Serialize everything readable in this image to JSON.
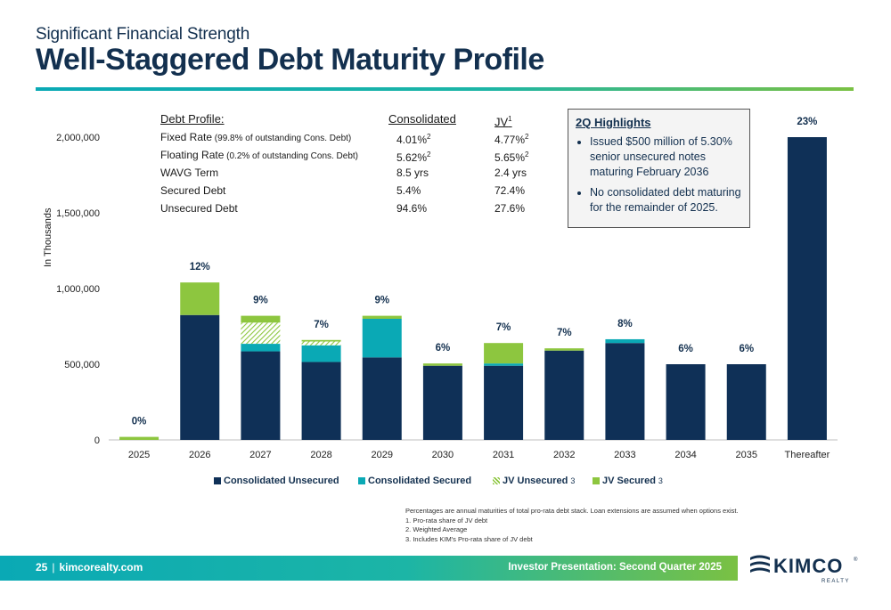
{
  "header": {
    "subtitle": "Significant Financial Strength",
    "title": "Well-Staggered Debt Maturity Profile"
  },
  "debt_profile": {
    "headers": {
      "label": "Debt Profile:",
      "consolidated": "Consolidated",
      "jv": "JV",
      "jv_sup": "1"
    },
    "rows": [
      {
        "label": "Fixed Rate",
        "note": "(99.8% of outstanding Cons. Debt)",
        "consolidated": "4.01%",
        "consolidated_sup": "2",
        "jv": "4.77%",
        "jv_sup": "2"
      },
      {
        "label": "Floating Rate",
        "note": "(0.2% of outstanding Cons. Debt)",
        "consolidated": "5.62%",
        "consolidated_sup": "2",
        "jv": "5.65%",
        "jv_sup": "2"
      },
      {
        "label": "WAVG Term",
        "note": "",
        "consolidated": "8.5 yrs",
        "consolidated_sup": "",
        "jv": "2.4 yrs",
        "jv_sup": ""
      },
      {
        "label": "Secured Debt",
        "note": "",
        "consolidated": "5.4%",
        "consolidated_sup": "",
        "jv": "72.4%",
        "jv_sup": ""
      },
      {
        "label": "Unsecured Debt",
        "note": "",
        "consolidated": "94.6%",
        "consolidated_sup": "",
        "jv": "27.6%",
        "jv_sup": ""
      }
    ]
  },
  "highlights": {
    "heading": "2Q Highlights",
    "items": [
      "Issued $500 million of 5.30% senior unsecured notes maturing February 2036",
      "No consolidated debt maturing for the remainder of 2025."
    ]
  },
  "chart_data": {
    "type": "bar",
    "stacked": true,
    "ylabel": "In Thousands",
    "ylim": [
      0,
      2000000
    ],
    "yticks": [
      "0",
      "500,000",
      "1,000,000",
      "1,500,000",
      "2,000,000"
    ],
    "ytick_values": [
      0,
      500000,
      1000000,
      1500000,
      2000000
    ],
    "categories": [
      "2025",
      "2026",
      "2027",
      "2028",
      "2029",
      "2030",
      "2031",
      "2032",
      "2033",
      "2034",
      "2035",
      "Thereafter"
    ],
    "series": [
      {
        "name": "Consolidated Unsecured",
        "color": "#0f3057",
        "values": [
          0,
          825000,
          585000,
          515000,
          545000,
          490000,
          490000,
          590000,
          640000,
          500000,
          500000,
          2000000
        ]
      },
      {
        "name": "Consolidated Secured",
        "color": "#0aa9b5",
        "values": [
          0,
          0,
          50000,
          110000,
          255000,
          0,
          15000,
          0,
          25000,
          0,
          0,
          0
        ]
      },
      {
        "name": "JV Unsecured",
        "color": "#8dc63f",
        "pattern": "hatch",
        "values": [
          0,
          0,
          140000,
          25000,
          0,
          0,
          0,
          0,
          0,
          0,
          0,
          0
        ]
      },
      {
        "name": "JV Secured",
        "color": "#8dc63f",
        "values": [
          20000,
          215000,
          45000,
          10000,
          20000,
          15000,
          135000,
          15000,
          0,
          0,
          0,
          0
        ]
      }
    ],
    "data_labels": [
      "0%",
      "12%",
      "9%",
      "7%",
      "9%",
      "6%",
      "7%",
      "7%",
      "8%",
      "6%",
      "6%",
      "23%"
    ],
    "legend_position": "bottom",
    "grid": false
  },
  "legend": {
    "items": [
      {
        "label": "Consolidated Unsecured",
        "sub": ""
      },
      {
        "label": "Consolidated Secured",
        "sub": ""
      },
      {
        "label": "JV Unsecured",
        "sub": "3"
      },
      {
        "label": "JV Secured",
        "sub": "3"
      }
    ]
  },
  "notes": [
    "Percentages are annual maturities of total pro-rata debt stack. Loan extensions are assumed when options exist.",
    "1. Pro-rata share of JV debt",
    "2. Weighted Average",
    "3. Includes KIM's Pro-rata share of JV debt"
  ],
  "footer": {
    "page": "25",
    "site": "kimcorealty.com",
    "right": "Investor Presentation: Second Quarter 2025"
  },
  "logo": {
    "name": "KIMCO",
    "sub": "REALTY",
    "reg": "®"
  }
}
